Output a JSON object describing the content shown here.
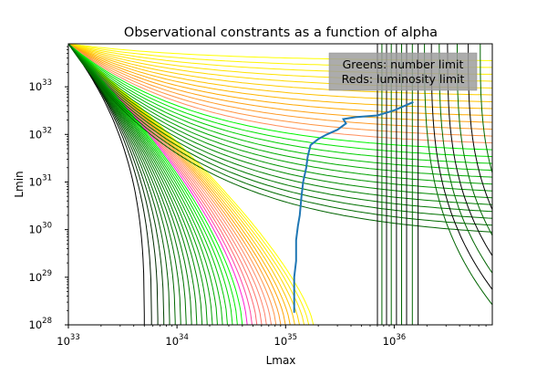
{
  "chart_data": {
    "type": "line",
    "title": "Observational constrants as a function of alpha",
    "xlabel": "Lmax",
    "ylabel": "Lmin",
    "xscale": "log",
    "yscale": "log",
    "xlim": [
      1e+33,
      8e+36
    ],
    "ylim": [
      1e+28,
      8e+33
    ],
    "x_ticks": [
      {
        "value": 1e+33,
        "base": "10",
        "exp": "33"
      },
      {
        "value": 1e+34,
        "base": "10",
        "exp": "34"
      },
      {
        "value": 1e+35,
        "base": "10",
        "exp": "35"
      },
      {
        "value": 1e+36,
        "base": "10",
        "exp": "36"
      }
    ],
    "y_ticks": [
      {
        "value": 1e+28,
        "base": "10",
        "exp": "28"
      },
      {
        "value": 1e+29,
        "base": "10",
        "exp": "29"
      },
      {
        "value": 1e+30,
        "base": "10",
        "exp": "30"
      },
      {
        "value": 1e+31,
        "base": "10",
        "exp": "31"
      },
      {
        "value": 1e+32,
        "base": "10",
        "exp": "32"
      },
      {
        "value": 1e+33,
        "base": "10",
        "exp": "33"
      }
    ],
    "legend_box": {
      "placement": "top-right",
      "lines": [
        "Greens: number limit",
        "Reds: luminosity limit"
      ],
      "fill": "#9e9e9e"
    },
    "colors": {
      "number_limit": [
        "#000000",
        "#006400",
        "#008000",
        "#00b000",
        "#00ff00"
      ],
      "luminosity_limit": [
        "#ff00ff",
        "#ff6a6a",
        "#ff8c69",
        "#ffa500",
        "#ffd700",
        "#ffff00"
      ],
      "boundary": "#1f77b4",
      "vertical_family": [
        "#000000",
        "#006400"
      ]
    },
    "boundary_series": {
      "name": "",
      "points": [
        [
          1.2e+35,
          1.8e+28
        ],
        [
          1.2e+35,
          1e+29
        ],
        [
          1.25e+35,
          2.2e+29
        ],
        [
          1.25e+35,
          6e+29
        ],
        [
          1.3e+35,
          1.2e+30
        ],
        [
          1.35e+35,
          2e+30
        ],
        [
          1.4e+35,
          5e+30
        ],
        [
          1.45e+35,
          1e+31
        ],
        [
          1.55e+35,
          2e+31
        ],
        [
          1.6e+35,
          3.5e+31
        ],
        [
          1.7e+35,
          6e+31
        ],
        [
          2e+35,
          8e+31
        ],
        [
          2.4e+35,
          1e+32
        ],
        [
          3e+35,
          1.25e+32
        ],
        [
          3.6e+35,
          1.7e+32
        ],
        [
          3.4e+35,
          2.1e+32
        ],
        [
          4.4e+35,
          2.3e+32
        ],
        [
          7e+35,
          2.5e+32
        ],
        [
          1e+36,
          3.2e+32
        ],
        [
          1.5e+36,
          4.8e+32
        ]
      ]
    },
    "steep_curves": {
      "count": 34,
      "x_left_start": 5e+33,
      "x_left_end": 1.8e+35,
      "y_top": 8e+33
    },
    "vertical_curves": {
      "count": 16,
      "x_positions": [
        7e+35,
        7.7e+35,
        8.5e+35,
        9.4e+35,
        1.05e+36,
        1.17e+36,
        1.3e+36,
        1.47e+36,
        1.66e+36,
        1.9e+36,
        2.2e+36,
        2.6e+36,
        3.1e+36,
        3.8e+36,
        4.8e+36,
        6.2e+36
      ]
    }
  }
}
